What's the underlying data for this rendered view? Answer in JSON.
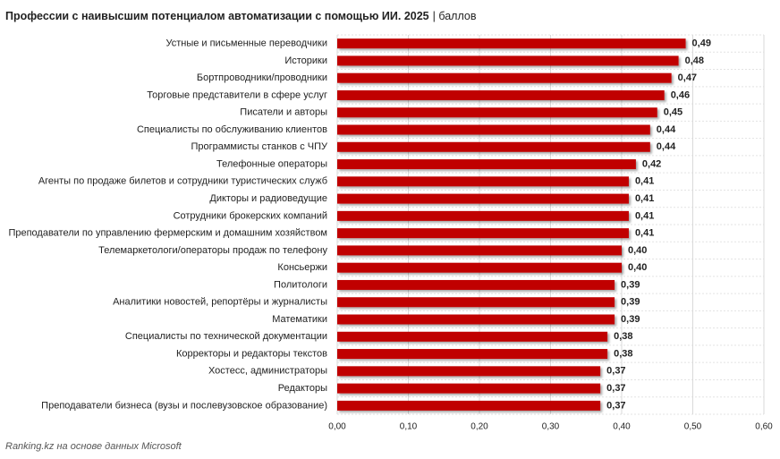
{
  "chart_data": {
    "type": "bar",
    "orientation": "horizontal",
    "title": "Профессии с наивысшим потенциалом автоматизации с помощью ИИ. 2025",
    "subtitle": "| баллов",
    "source": "Ranking.kz на основе данных Microsoft",
    "color": "#c00000",
    "categories": [
      "Устные и письменные переводчики",
      "Историки",
      "Бортпроводники/проводники",
      "Торговые представители в сфере услуг",
      "Писатели и авторы",
      "Специалисты по обслуживанию клиентов",
      "Программисты станков с ЧПУ",
      "Телефонные операторы",
      "Агенты по продаже билетов и сотрудники туристических служб",
      "Дикторы и радиоведущие",
      "Сотрудники брокерских компаний",
      "Преподаватели по управлению фермерским и домашним хозяйством",
      "Телемаркетологи/операторы продаж по телефону",
      "Консьержи",
      "Политологи",
      "Аналитики новостей, репортёры и журналисты",
      "Математики",
      "Специалисты по технической документации",
      "Корректоры и редакторы текстов",
      "Хостесс, администраторы",
      "Редакторы",
      "Преподаватели бизнеса (вузы и послевузовское образование)"
    ],
    "values": [
      0.49,
      0.48,
      0.47,
      0.46,
      0.45,
      0.44,
      0.44,
      0.42,
      0.41,
      0.41,
      0.41,
      0.41,
      0.4,
      0.4,
      0.39,
      0.39,
      0.39,
      0.38,
      0.38,
      0.37,
      0.37,
      0.37
    ],
    "value_labels": [
      "0,49",
      "0,48",
      "0,47",
      "0,46",
      "0,45",
      "0,44",
      "0,44",
      "0,42",
      "0,41",
      "0,41",
      "0,41",
      "0,41",
      "0,40",
      "0,40",
      "0,39",
      "0,39",
      "0,39",
      "0,38",
      "0,38",
      "0,37",
      "0,37",
      "0,37"
    ],
    "xlim": [
      0,
      0.6
    ],
    "xticks": [
      {
        "value": 0,
        "label": "0,00"
      },
      {
        "value": 0.1,
        "label": "0,10"
      },
      {
        "value": 0.2,
        "label": "0,20"
      },
      {
        "value": 0.3,
        "label": "0,30"
      },
      {
        "value": 0.4,
        "label": "0,40"
      },
      {
        "value": 0.5,
        "label": "0,50"
      },
      {
        "value": 0.6,
        "label": "0,60"
      }
    ],
    "grid": true
  }
}
